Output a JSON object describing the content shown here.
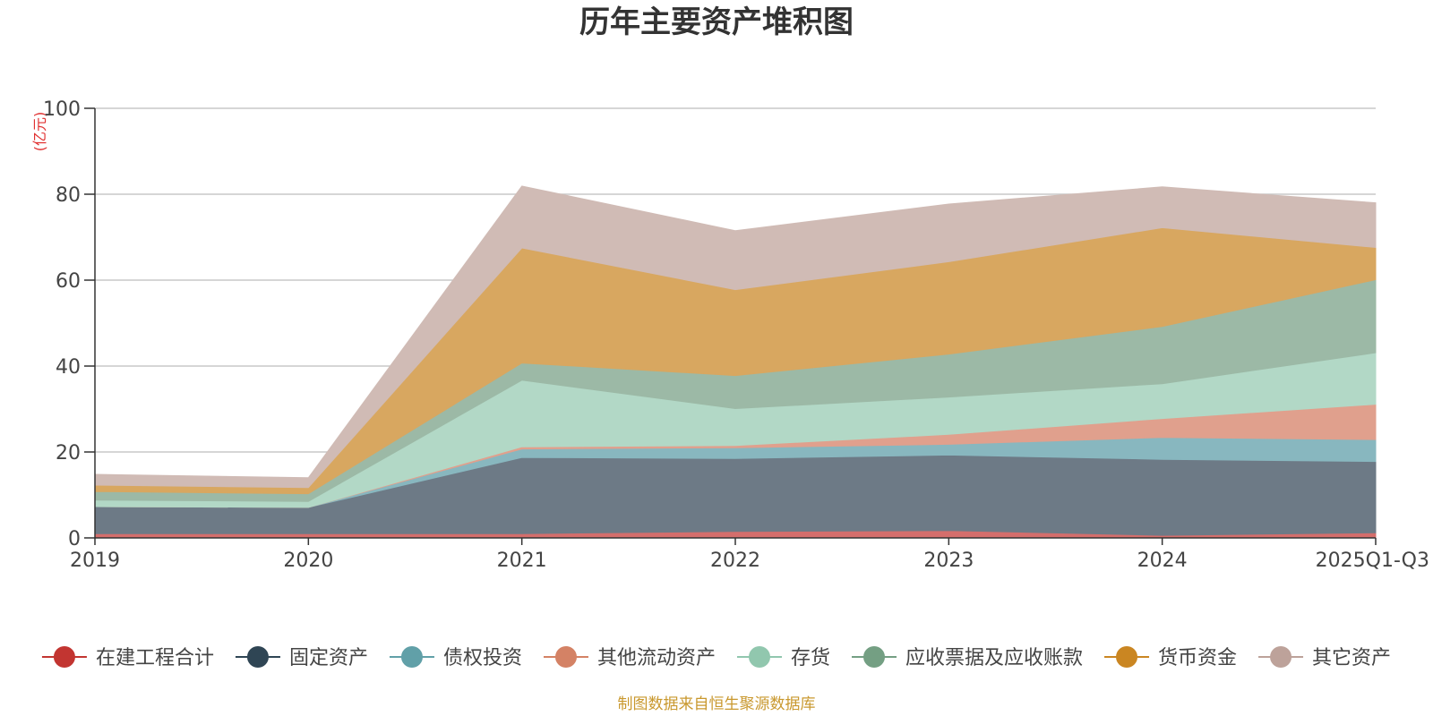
{
  "chart_data": {
    "type": "area",
    "stacked": true,
    "title": "历年主要资产堆积图",
    "unit_label": "(亿元)",
    "categories": [
      "2019",
      "2020",
      "2021",
      "2022",
      "2023",
      "2024",
      "2025Q1-Q3"
    ],
    "ylim": [
      0,
      100
    ],
    "yticks": [
      0,
      20,
      40,
      60,
      80,
      100
    ],
    "grid": true,
    "legend_position": "bottom",
    "series": [
      {
        "name": "在建工程合计",
        "color": "#c23531",
        "fill": "#d46e6c",
        "values": [
          1.0,
          1.0,
          1.0,
          1.5,
          1.7,
          0.6,
          1.2
        ]
      },
      {
        "name": "固定资产",
        "color": "#2f4554",
        "fill": "#6d7a86",
        "values": [
          6.3,
          6.1,
          17.7,
          17.0,
          17.6,
          17.7,
          16.6
        ]
      },
      {
        "name": "债权投资",
        "color": "#61a0a8",
        "fill": "#88b7bf",
        "values": [
          0.0,
          0.0,
          2.0,
          2.5,
          2.5,
          5.1,
          5.1
        ]
      },
      {
        "name": "其他流动资产",
        "color": "#d48265",
        "fill": "#e0a08d",
        "values": [
          0.0,
          0.0,
          0.5,
          0.5,
          2.3,
          4.4,
          8.2
        ]
      },
      {
        "name": "存货",
        "color": "#91c7ae",
        "fill": "#b2d8c6",
        "values": [
          1.5,
          1.4,
          15.5,
          8.6,
          8.7,
          8.1,
          12.0
        ]
      },
      {
        "name": "应收票据及应收账款",
        "color": "#749f83",
        "fill": "#9cb9a6",
        "values": [
          2.0,
          1.8,
          4.0,
          7.7,
          10.0,
          13.3,
          17.0
        ]
      },
      {
        "name": "货币资金",
        "color": "#ca8622",
        "fill": "#d8a760",
        "values": [
          1.5,
          1.4,
          26.8,
          20.0,
          21.5,
          23.0,
          7.5
        ]
      },
      {
        "name": "其它资产",
        "color": "#bda29a",
        "fill": "#d0bbb5",
        "values": [
          2.5,
          2.3,
          14.4,
          13.7,
          13.4,
          9.5,
          10.4
        ]
      }
    ]
  },
  "footer": {
    "source_text": "制图数据来自恒生聚源数据库"
  }
}
